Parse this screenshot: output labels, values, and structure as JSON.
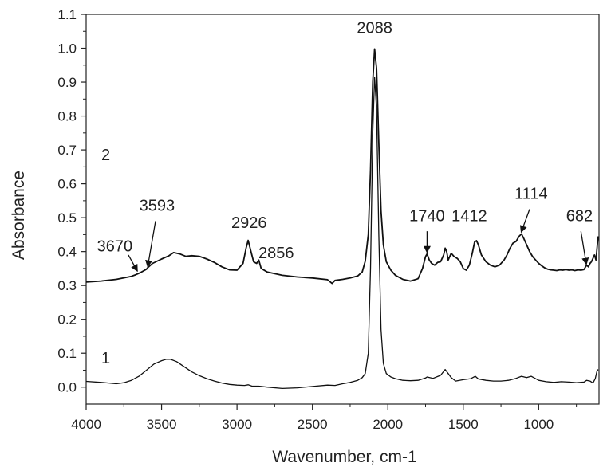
{
  "chart_data": {
    "type": "line",
    "title": "",
    "xlabel": "Wavenumber, cm-1",
    "ylabel": "Absorbance",
    "xlim": [
      4000,
      600
    ],
    "ylim": [
      -0.05,
      1.1
    ],
    "x_reversed": true,
    "grid": false,
    "x_ticks": [
      4000,
      3500,
      3000,
      2500,
      2000,
      1500,
      1000
    ],
    "x_tick_labels": [
      "4000",
      "3500",
      "3000",
      "2500",
      "2000",
      "1500",
      "1000"
    ],
    "y_ticks": [
      0.0,
      0.1,
      0.2,
      0.3,
      0.4,
      0.5,
      0.6,
      0.7,
      0.8,
      0.9,
      1.0,
      1.1
    ],
    "y_tick_labels": [
      "0.0",
      "0.1",
      "0.2",
      "0.3",
      "0.4",
      "0.5",
      "0.6",
      "0.7",
      "0.8",
      "0.9",
      "1.0",
      "1.1"
    ],
    "series": [
      {
        "name": "2",
        "x": [
          4000,
          3900,
          3800,
          3700,
          3670,
          3640,
          3600,
          3593,
          3560,
          3500,
          3450,
          3420,
          3380,
          3340,
          3300,
          3250,
          3200,
          3150,
          3100,
          3050,
          3000,
          2960,
          2940,
          2926,
          2910,
          2890,
          2870,
          2856,
          2840,
          2800,
          2700,
          2600,
          2500,
          2400,
          2370,
          2350,
          2300,
          2250,
          2200,
          2170,
          2150,
          2130,
          2115,
          2100,
          2088,
          2075,
          2060,
          2045,
          2030,
          2010,
          1980,
          1950,
          1900,
          1850,
          1800,
          1770,
          1750,
          1740,
          1725,
          1710,
          1690,
          1670,
          1650,
          1630,
          1620,
          1610,
          1600,
          1580,
          1560,
          1540,
          1520,
          1500,
          1480,
          1460,
          1440,
          1425,
          1412,
          1400,
          1380,
          1350,
          1320,
          1290,
          1260,
          1230,
          1210,
          1190,
          1170,
          1150,
          1130,
          1114,
          1100,
          1080,
          1060,
          1040,
          1020,
          1000,
          980,
          960,
          940,
          920,
          900,
          880,
          860,
          840,
          820,
          800,
          780,
          760,
          740,
          720,
          700,
          682,
          670,
          660,
          650,
          640,
          630,
          620,
          610,
          605
        ],
        "y": [
          0.31,
          0.313,
          0.318,
          0.327,
          0.332,
          0.338,
          0.348,
          0.352,
          0.365,
          0.378,
          0.388,
          0.397,
          0.393,
          0.386,
          0.388,
          0.386,
          0.378,
          0.368,
          0.355,
          0.346,
          0.345,
          0.365,
          0.41,
          0.433,
          0.405,
          0.37,
          0.365,
          0.375,
          0.35,
          0.34,
          0.33,
          0.325,
          0.322,
          0.317,
          0.306,
          0.315,
          0.318,
          0.322,
          0.328,
          0.34,
          0.372,
          0.45,
          0.64,
          0.9,
          0.998,
          0.94,
          0.72,
          0.52,
          0.42,
          0.37,
          0.345,
          0.33,
          0.318,
          0.313,
          0.32,
          0.35,
          0.385,
          0.393,
          0.375,
          0.365,
          0.36,
          0.368,
          0.37,
          0.39,
          0.41,
          0.4,
          0.375,
          0.395,
          0.385,
          0.38,
          0.37,
          0.35,
          0.345,
          0.36,
          0.395,
          0.428,
          0.432,
          0.42,
          0.39,
          0.37,
          0.36,
          0.355,
          0.36,
          0.375,
          0.39,
          0.41,
          0.425,
          0.43,
          0.445,
          0.452,
          0.44,
          0.42,
          0.4,
          0.385,
          0.375,
          0.365,
          0.358,
          0.352,
          0.348,
          0.346,
          0.345,
          0.344,
          0.346,
          0.345,
          0.347,
          0.345,
          0.346,
          0.344,
          0.346,
          0.345,
          0.347,
          0.36,
          0.355,
          0.365,
          0.37,
          0.38,
          0.39,
          0.375,
          0.425,
          0.445
        ]
      },
      {
        "name": "1",
        "x": [
          4000,
          3900,
          3850,
          3800,
          3750,
          3700,
          3650,
          3600,
          3550,
          3500,
          3470,
          3440,
          3400,
          3350,
          3300,
          3250,
          3200,
          3150,
          3100,
          3050,
          3000,
          2950,
          2926,
          2900,
          2856,
          2800,
          2700,
          2600,
          2500,
          2400,
          2350,
          2300,
          2250,
          2200,
          2170,
          2150,
          2130,
          2115,
          2100,
          2088,
          2075,
          2060,
          2045,
          2030,
          2010,
          1980,
          1950,
          1900,
          1850,
          1800,
          1750,
          1740,
          1700,
          1650,
          1620,
          1600,
          1580,
          1550,
          1500,
          1450,
          1420,
          1400,
          1350,
          1300,
          1250,
          1200,
          1150,
          1114,
          1080,
          1050,
          1000,
          950,
          900,
          850,
          800,
          750,
          700,
          682,
          660,
          640,
          625,
          615,
          610,
          605
        ],
        "y": [
          0.017,
          0.014,
          0.012,
          0.01,
          0.013,
          0.02,
          0.032,
          0.05,
          0.068,
          0.078,
          0.082,
          0.082,
          0.075,
          0.06,
          0.045,
          0.034,
          0.025,
          0.018,
          0.012,
          0.008,
          0.006,
          0.005,
          0.007,
          0.003,
          0.003,
          0.0,
          -0.004,
          -0.002,
          0.002,
          0.006,
          0.005,
          0.01,
          0.014,
          0.02,
          0.028,
          0.04,
          0.1,
          0.35,
          0.75,
          0.915,
          0.82,
          0.45,
          0.17,
          0.07,
          0.04,
          0.03,
          0.025,
          0.02,
          0.019,
          0.02,
          0.027,
          0.03,
          0.026,
          0.035,
          0.052,
          0.04,
          0.028,
          0.018,
          0.022,
          0.025,
          0.032,
          0.024,
          0.02,
          0.018,
          0.018,
          0.02,
          0.026,
          0.032,
          0.028,
          0.032,
          0.02,
          0.016,
          0.014,
          0.016,
          0.015,
          0.013,
          0.015,
          0.02,
          0.018,
          0.012,
          0.025,
          0.045,
          0.05,
          0.052
        ]
      }
    ],
    "series_labels": [
      {
        "text": "2",
        "x": 3870,
        "y": 0.67
      },
      {
        "text": "1",
        "x": 3870,
        "y": 0.07
      }
    ],
    "annotations": [
      {
        "text": "2088",
        "x": 2088,
        "y": 1.045,
        "arrow": false
      },
      {
        "text": "3670",
        "x": 3810,
        "y": 0.4,
        "arrow": true,
        "arrow_from": [
          3720,
          0.39
        ],
        "arrow_to": [
          3660,
          0.342
        ]
      },
      {
        "text": "3593",
        "x": 3530,
        "y": 0.52,
        "arrow": true,
        "arrow_from": [
          3540,
          0.49
        ],
        "arrow_to": [
          3592,
          0.355
        ]
      },
      {
        "text": "2926",
        "x": 2920,
        "y": 0.47,
        "arrow": false
      },
      {
        "text": "2856",
        "x": 2740,
        "y": 0.38,
        "arrow": false
      },
      {
        "text": "1740",
        "x": 1740,
        "y": 0.49,
        "arrow": true,
        "arrow_from": [
          1740,
          0.46
        ],
        "arrow_to": [
          1740,
          0.397
        ]
      },
      {
        "text": "1412",
        "x": 1460,
        "y": 0.49,
        "arrow": false
      },
      {
        "text": "1114",
        "x": 1050,
        "y": 0.555,
        "arrow": true,
        "arrow_from": [
          1060,
          0.525
        ],
        "arrow_to": [
          1116,
          0.457
        ]
      },
      {
        "text": "682",
        "x": 730,
        "y": 0.49,
        "arrow": true,
        "arrow_from": [
          720,
          0.46
        ],
        "arrow_to": [
          684,
          0.362
        ]
      }
    ]
  }
}
